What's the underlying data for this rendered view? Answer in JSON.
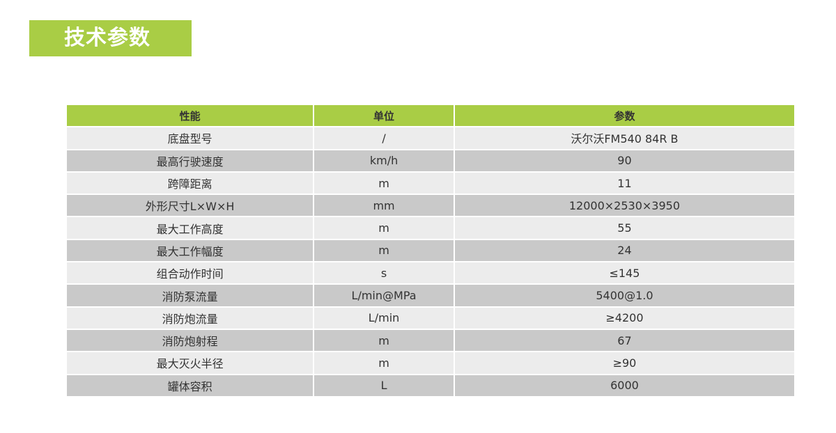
{
  "title": "技术参数",
  "colors": {
    "accent": "#a9cd45",
    "row_light": "#ececec",
    "row_dark": "#c9c9c9"
  },
  "table": {
    "headers": [
      "性能",
      "单位",
      "参数"
    ],
    "rows": [
      [
        "底盘型号",
        "/",
        "沃尔沃FM540 84R B"
      ],
      [
        "最高行驶速度",
        "km/h",
        "90"
      ],
      [
        "跨障距离",
        "m",
        "11"
      ],
      [
        "外形尺寸L×W×H",
        "mm",
        "12000×2530×3950"
      ],
      [
        "最大工作高度",
        "m",
        "55"
      ],
      [
        "最大工作幅度",
        "m",
        "24"
      ],
      [
        "组合动作时间",
        "s",
        "≤145"
      ],
      [
        "消防泵流量",
        "L/min@MPa",
        "5400@1.0"
      ],
      [
        "消防炮流量",
        "L/min",
        "≥4200"
      ],
      [
        "消防炮射程",
        "m",
        "67"
      ],
      [
        "最大灭火半径",
        "m",
        "≥90"
      ],
      [
        "罐体容积",
        "L",
        "6000"
      ]
    ]
  }
}
